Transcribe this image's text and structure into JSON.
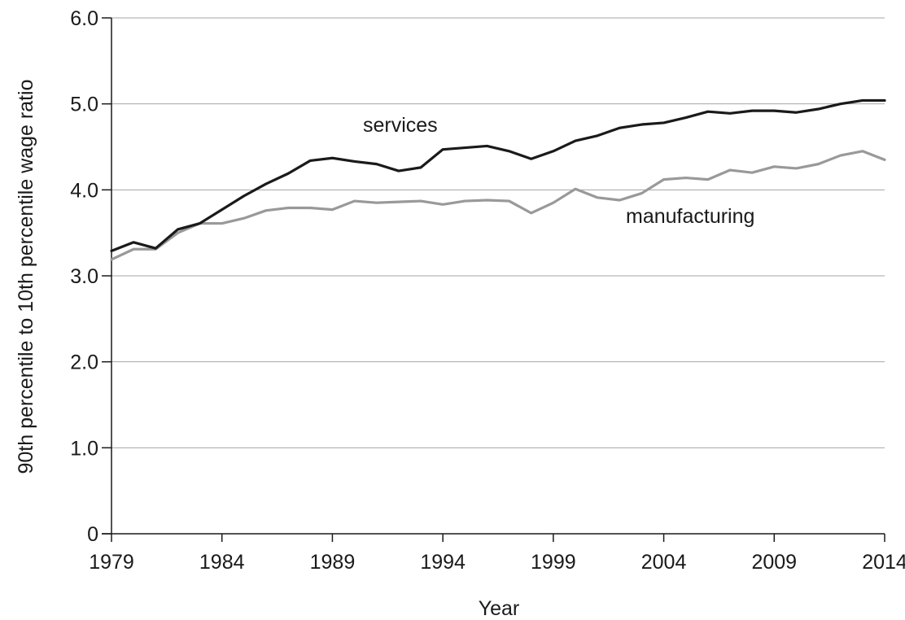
{
  "chart_data": {
    "type": "line",
    "xlabel": "Year",
    "ylabel": "90th percentile to 10th percentile wage ratio",
    "xlim": [
      1979,
      2014
    ],
    "ylim": [
      0,
      6.0
    ],
    "x_ticks": [
      {
        "value": 1979,
        "label": "1979"
      },
      {
        "value": 1984,
        "label": "1984"
      },
      {
        "value": 1989,
        "label": "1989"
      },
      {
        "value": 1994,
        "label": "1994"
      },
      {
        "value": 1999,
        "label": "1999"
      },
      {
        "value": 2004,
        "label": "2004"
      },
      {
        "value": 2009,
        "label": "2009"
      },
      {
        "value": 2014,
        "label": "2014"
      }
    ],
    "y_ticks": [
      {
        "value": 0,
        "label": "0"
      },
      {
        "value": 1,
        "label": "1.0"
      },
      {
        "value": 2,
        "label": "2.0"
      },
      {
        "value": 3,
        "label": "3.0"
      },
      {
        "value": 4,
        "label": "4.0"
      },
      {
        "value": 5,
        "label": "5.0"
      },
      {
        "value": 6,
        "label": "6.0"
      }
    ],
    "grid": "horizontal",
    "x": [
      1979,
      1980,
      1981,
      1982,
      1983,
      1984,
      1985,
      1986,
      1987,
      1988,
      1989,
      1990,
      1991,
      1992,
      1993,
      1994,
      1995,
      1996,
      1997,
      1998,
      1999,
      2000,
      2001,
      2002,
      2003,
      2004,
      2005,
      2006,
      2007,
      2008,
      2009,
      2010,
      2011,
      2012,
      2013,
      2014
    ],
    "series": [
      {
        "name": "services",
        "color": "#1a1a1a",
        "values": [
          3.29,
          3.39,
          3.32,
          3.54,
          3.61,
          3.77,
          3.93,
          4.07,
          4.19,
          4.34,
          4.37,
          4.33,
          4.3,
          4.22,
          4.26,
          4.47,
          4.49,
          4.51,
          4.45,
          4.36,
          4.45,
          4.57,
          4.63,
          4.72,
          4.76,
          4.78,
          4.84,
          4.91,
          4.89,
          4.92,
          4.92,
          4.9,
          4.94,
          5.0,
          5.04,
          5.04
        ]
      },
      {
        "name": "manufacturing",
        "color": "#999999",
        "values": [
          3.19,
          3.31,
          3.31,
          3.5,
          3.61,
          3.61,
          3.67,
          3.76,
          3.79,
          3.79,
          3.77,
          3.87,
          3.85,
          3.86,
          3.87,
          3.83,
          3.87,
          3.88,
          3.87,
          3.73,
          3.85,
          4.01,
          3.91,
          3.88,
          3.96,
          4.12,
          4.14,
          4.12,
          4.23,
          4.2,
          4.27,
          4.25,
          4.3,
          4.4,
          4.45,
          4.35
        ]
      }
    ]
  }
}
